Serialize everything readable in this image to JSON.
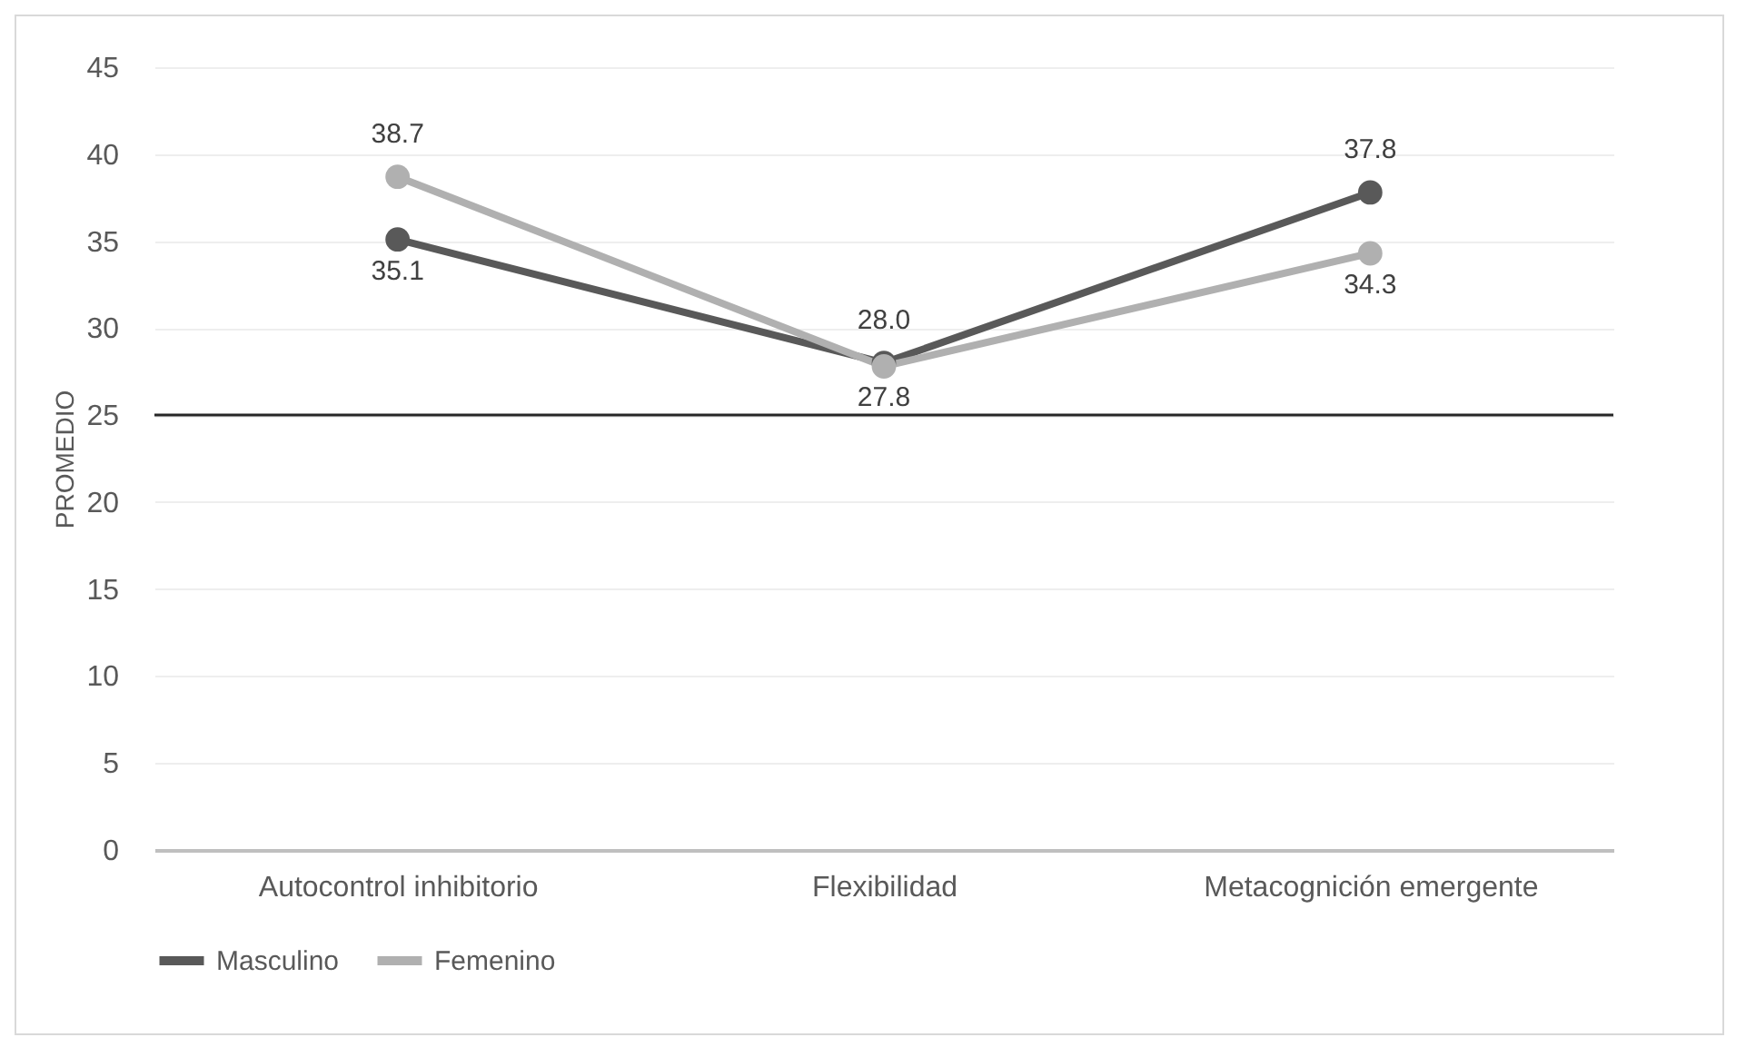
{
  "chart_data": {
    "type": "line",
    "ylabel": "PROMEDIO",
    "categories": [
      "Autocontrol inhibitorio",
      "Flexibilidad",
      "Metacognición emergente"
    ],
    "series": [
      {
        "name": "Masculino",
        "color": "#595959",
        "values": [
          35.1,
          28.0,
          37.8
        ],
        "value_labels": [
          "35.1",
          "28.0",
          "37.8"
        ]
      },
      {
        "name": "Femenino",
        "color": "#b0b0b0",
        "values": [
          38.7,
          27.8,
          34.3
        ],
        "value_labels": [
          "38.7",
          "27.8",
          "34.3"
        ]
      }
    ],
    "ylim": [
      0,
      45
    ],
    "yticks": [
      0,
      5,
      10,
      15,
      20,
      25,
      30,
      35,
      40,
      45
    ],
    "grid": "y",
    "legend": "bottom",
    "marker": "circle",
    "ref_lines": [
      {
        "axis": "y",
        "value": 25,
        "color": "#262626"
      }
    ]
  }
}
